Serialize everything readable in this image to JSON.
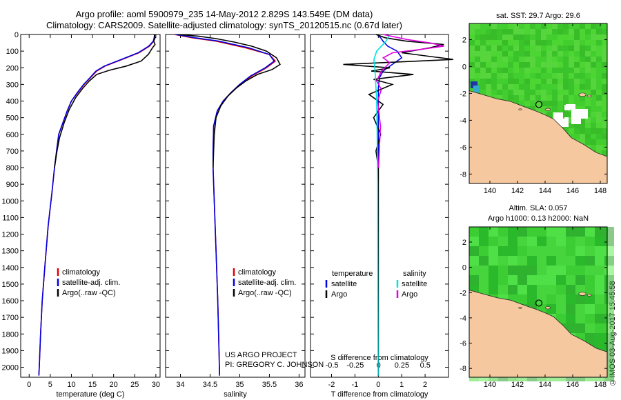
{
  "header": {
    "line1": "Argo profile: aoml 5900979_235 14-May-2012 2.829S 143.549E (DM data)",
    "line2": "Climatology: CARS2009. Satellite-adjusted climatology: synTS_20120515.nc (0.67d later)"
  },
  "credit": "©IMOS 03-Aug-2017 15:45:58",
  "colors": {
    "climatology": "#e00000",
    "satellite": "#0000e0",
    "argo": "#000000",
    "sal_satellite": "#00e0e0",
    "sal_argo": "#e000e0",
    "land": "#f5c8a0",
    "ocean_green": "#3cc83c"
  },
  "chart_data": [
    {
      "id": "temperature",
      "type": "line",
      "xlabel": "temperature (deg C)",
      "xlim": [
        -2,
        31
      ],
      "xticks": [
        0,
        5,
        10,
        15,
        20,
        25,
        30
      ],
      "ylim": [
        2060,
        0
      ],
      "yticks": [
        0,
        100,
        200,
        300,
        400,
        500,
        600,
        700,
        800,
        900,
        1000,
        1100,
        1200,
        1300,
        1400,
        1500,
        1600,
        1700,
        1800,
        1900,
        2000
      ],
      "legend": [
        "climatology",
        "satellite-adj. clim.",
        "Argo(..raw -QC)"
      ],
      "series": [
        {
          "name": "climatology",
          "color": "#e00000",
          "x": [
            29.8,
            29.7,
            29.5,
            28.5,
            26,
            22,
            18,
            16,
            14.5,
            13,
            11.5,
            10,
            9,
            8,
            7,
            6.5,
            6,
            5.4,
            4.5,
            3.7,
            3.1,
            2.7,
            2.4,
            2.3
          ],
          "y": [
            0,
            20,
            40,
            70,
            110,
            150,
            190,
            220,
            260,
            300,
            350,
            400,
            460,
            530,
            600,
            700,
            800,
            950,
            1150,
            1400,
            1600,
            1800,
            2000,
            2050
          ]
        },
        {
          "name": "satellite-adj. clim.",
          "color": "#0000e0",
          "x": [
            29.7,
            29.6,
            29.4,
            28.3,
            25.8,
            21.8,
            17.8,
            15.8,
            14.4,
            12.9,
            11.4,
            10,
            9,
            8,
            7,
            6.5,
            6,
            5.4,
            4.5,
            3.7,
            3.1,
            2.7,
            2.4,
            2.3
          ],
          "y": [
            0,
            20,
            40,
            70,
            110,
            150,
            190,
            220,
            260,
            300,
            350,
            400,
            460,
            530,
            600,
            700,
            800,
            950,
            1150,
            1400,
            1600,
            1800,
            2000,
            2050
          ]
        },
        {
          "name": "Argo(..raw -QC)",
          "color": "#000000",
          "x": [
            29.6,
            29.8,
            29.5,
            29.8,
            29.2,
            28.2,
            26.5,
            23,
            19,
            16,
            14.2,
            12.8,
            11,
            9.5,
            8.3,
            7.2,
            6.6,
            6
          ],
          "y": [
            0,
            20,
            40,
            60,
            80,
            120,
            160,
            190,
            215,
            240,
            280,
            320,
            380,
            450,
            530,
            620,
            700,
            800
          ]
        }
      ]
    },
    {
      "id": "salinity",
      "type": "line",
      "xlabel": "salinity",
      "xlim": [
        33.75,
        36.1
      ],
      "xticks": [
        34,
        34.5,
        35,
        35.5,
        36
      ],
      "ylim": [
        2060,
        0
      ],
      "legend": [
        "climatology",
        "satellite-adj. clim.",
        "Argo(..raw -QC)"
      ],
      "annotation": [
        "US ARGO PROJECT",
        "PI: GREGORY C. JOHNSON"
      ],
      "series": [
        {
          "name": "climatology",
          "color": "#e00000",
          "x": [
            33.9,
            34.2,
            34.6,
            35.1,
            35.5,
            35.6,
            35.45,
            35.2,
            35,
            34.85,
            34.72,
            34.62,
            34.56,
            34.55,
            34.55,
            34.57,
            34.6,
            34.63,
            34.65,
            34.66
          ],
          "y": [
            0,
            20,
            40,
            80,
            120,
            160,
            200,
            250,
            300,
            350,
            400,
            460,
            550,
            700,
            800,
            1000,
            1300,
            1600,
            1900,
            2050
          ]
        },
        {
          "name": "satellite-adj. clim.",
          "color": "#0000e0",
          "x": [
            33.92,
            34.25,
            34.65,
            35.15,
            35.5,
            35.58,
            35.43,
            35.18,
            35,
            34.85,
            34.72,
            34.62,
            34.56,
            34.55,
            34.55,
            34.57,
            34.6,
            34.63,
            34.65,
            34.66
          ],
          "y": [
            0,
            20,
            40,
            80,
            120,
            160,
            200,
            250,
            300,
            350,
            400,
            460,
            550,
            700,
            800,
            1000,
            1300,
            1600,
            1900,
            2050
          ]
        },
        {
          "name": "Argo(..raw -QC)",
          "color": "#000000",
          "x": [
            33.95,
            34.3,
            34.6,
            34.9,
            35.2,
            35.45,
            35.62,
            35.68,
            35.55,
            35.3,
            35.1,
            34.95,
            34.8,
            34.68,
            34.6,
            34.57,
            34.56,
            34.55
          ],
          "y": [
            0,
            10,
            25,
            45,
            70,
            100,
            140,
            180,
            210,
            240,
            280,
            320,
            370,
            430,
            500,
            600,
            700,
            800
          ]
        }
      ]
    },
    {
      "id": "difference",
      "type": "line",
      "xlabel_top": "S difference from climatology",
      "xticks_top": [
        -0.5,
        -0.25,
        0,
        0.25,
        0.5
      ],
      "xlabel": "T difference from climatology",
      "xlim": [
        -2.9,
        3.0
      ],
      "xticks": [
        -2,
        -1,
        0,
        1,
        2
      ],
      "ylim": [
        2060,
        0
      ],
      "legend_left": [
        "temperature",
        "satellite",
        "Argo"
      ],
      "legend_right": [
        "salinity",
        "satellite",
        "Argo"
      ],
      "series": [
        {
          "name": "T satellite",
          "color": "#0000e0",
          "x": [
            -0.05,
            0.1,
            0.2,
            0.4,
            0.8,
            1.0,
            0.6,
            0.2,
            0.05,
            0,
            0,
            0
          ],
          "y": [
            0,
            20,
            40,
            70,
            100,
            140,
            180,
            220,
            260,
            320,
            600,
            2050
          ]
        },
        {
          "name": "T Argo",
          "color": "#000000",
          "x": [
            -0.1,
            0.3,
            1.2,
            2.8,
            2.2,
            1.0,
            3.2,
            -1.5,
            0.5,
            -0.3,
            1.5,
            -0.2,
            0.6,
            -0.4,
            0.2,
            -0.2,
            0.1,
            -0.1,
            0,
            0
          ],
          "y": [
            0,
            20,
            40,
            60,
            80,
            110,
            150,
            180,
            200,
            220,
            240,
            270,
            300,
            360,
            420,
            500,
            600,
            700,
            800,
            2050
          ]
        },
        {
          "name": "S satellite",
          "color": "#00e0e0",
          "x": [
            0.12,
            0.08,
            0.03,
            -0.02,
            -0.05,
            -0.04,
            -0.03,
            -0.02,
            -0.015,
            -0.01,
            -0.008,
            -0.005
          ],
          "y": [
            0,
            40,
            70,
            100,
            150,
            200,
            300,
            400,
            600,
            900,
            1500,
            2050
          ]
        },
        {
          "name": "S Argo",
          "color": "#e000e0",
          "x": [
            0.05,
            0.3,
            0.55,
            0.7,
            0.45,
            0.15,
            0.05,
            0.12,
            0.03,
            -0.02,
            0.03,
            -0.01,
            0.02,
            0
          ],
          "y": [
            0,
            30,
            50,
            70,
            90,
            110,
            140,
            170,
            220,
            280,
            330,
            400,
            550,
            800
          ]
        }
      ]
    },
    {
      "id": "sst-map",
      "type": "heatmap",
      "title": "sat. SST: 29.7  Argo: 29.6",
      "xlim": [
        138.5,
        148.5
      ],
      "ylim": [
        -8.7,
        3.2
      ],
      "xticks": [
        140,
        142,
        144,
        146,
        148
      ],
      "yticks": [
        2,
        0,
        -2,
        -4,
        -6,
        -8
      ],
      "float_position": {
        "lon": 143.549,
        "lat": -2.829
      }
    },
    {
      "id": "sla-map",
      "type": "heatmap",
      "title_line1": "Altim. SLA: 0.057",
      "title_line2": "Argo h1000: 0.13  h2000: NaN",
      "xlim": [
        138.5,
        148.5
      ],
      "ylim": [
        -8.7,
        3.2
      ],
      "xticks": [
        140,
        142,
        144,
        146,
        148
      ],
      "yticks": [
        2,
        0,
        -2,
        -4,
        -6,
        -8
      ],
      "float_position": {
        "lon": 143.549,
        "lat": -2.829
      }
    }
  ]
}
